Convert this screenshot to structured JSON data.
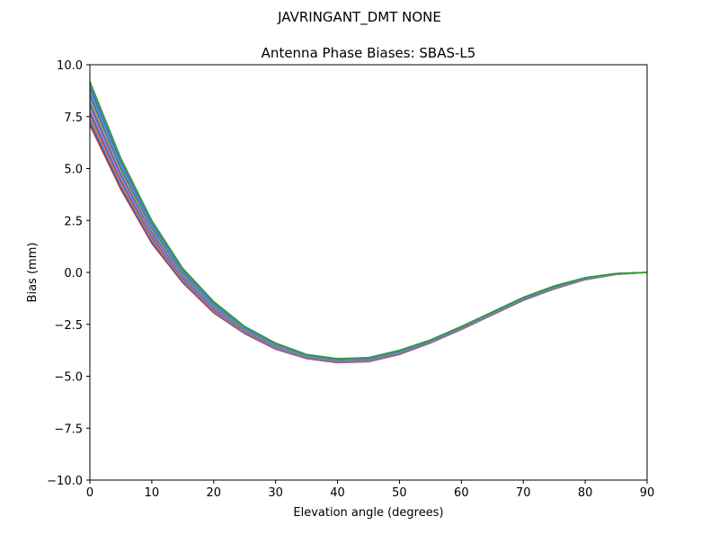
{
  "chart_data": {
    "type": "line",
    "suptitle": "JAVRINGANT_DMT  NONE",
    "title": "Antenna Phase Biases: SBAS-L5",
    "xlabel": "Elevation angle (degrees)",
    "ylabel": "Bias (mm)",
    "xlim": [
      0,
      90
    ],
    "ylim": [
      -10,
      10
    ],
    "xticks": [
      "0",
      "10",
      "20",
      "30",
      "40",
      "50",
      "60",
      "70",
      "80",
      "90"
    ],
    "yticks": [
      "−10.0",
      "−7.5",
      "−5.0",
      "−2.5",
      "0.0",
      "2.5",
      "5.0",
      "7.5",
      "10.0"
    ],
    "grid": false,
    "x": [
      0,
      5,
      10,
      15,
      20,
      25,
      30,
      35,
      40,
      45,
      50,
      55,
      60,
      65,
      70,
      75,
      80,
      85,
      90
    ],
    "series": [
      {
        "color": "#d62728",
        "values": [
          7.1,
          4.0,
          1.4,
          -0.5,
          -1.95,
          -2.95,
          -3.7,
          -4.15,
          -4.35,
          -4.3,
          -3.95,
          -3.4,
          -2.75,
          -2.05,
          -1.35,
          -0.8,
          -0.35,
          -0.1,
          0
        ]
      },
      {
        "color": "#ff7f0e",
        "values": [
          7.52,
          4.3,
          1.62,
          -0.36,
          -1.84,
          -2.88,
          -3.64,
          -4.11,
          -4.31,
          -4.26,
          -3.91,
          -3.37,
          -2.72,
          -2.02,
          -1.32,
          -0.77,
          -0.33,
          -0.09,
          0
        ]
      },
      {
        "color": "#e377c2",
        "values": [
          7.94,
          4.6,
          1.84,
          -0.22,
          -1.73,
          -2.81,
          -3.58,
          -4.07,
          -4.27,
          -4.22,
          -3.87,
          -3.34,
          -2.69,
          -1.99,
          -1.29,
          -0.74,
          -0.31,
          -0.08,
          0
        ]
      },
      {
        "color": "#bcbd22",
        "values": [
          8.36,
          4.9,
          2.06,
          -0.08,
          -1.62,
          -2.74,
          -3.52,
          -4.03,
          -4.23,
          -4.18,
          -3.83,
          -3.31,
          -2.66,
          -1.96,
          -1.26,
          -0.71,
          -0.29,
          -0.07,
          0
        ]
      },
      {
        "color": "#17becf",
        "values": [
          8.78,
          5.2,
          2.28,
          0.06,
          -1.51,
          -2.67,
          -3.46,
          -3.99,
          -4.19,
          -4.14,
          -3.79,
          -3.28,
          -2.63,
          -1.93,
          -1.23,
          -0.68,
          -0.27,
          -0.06,
          0
        ]
      },
      {
        "color": "#2ca02c",
        "values": [
          9.2,
          5.5,
          2.5,
          0.2,
          -1.4,
          -2.6,
          -3.4,
          -3.95,
          -4.15,
          -4.1,
          -3.75,
          -3.25,
          -2.6,
          -1.9,
          -1.2,
          -0.65,
          -0.25,
          -0.05,
          0
        ]
      }
    ]
  }
}
